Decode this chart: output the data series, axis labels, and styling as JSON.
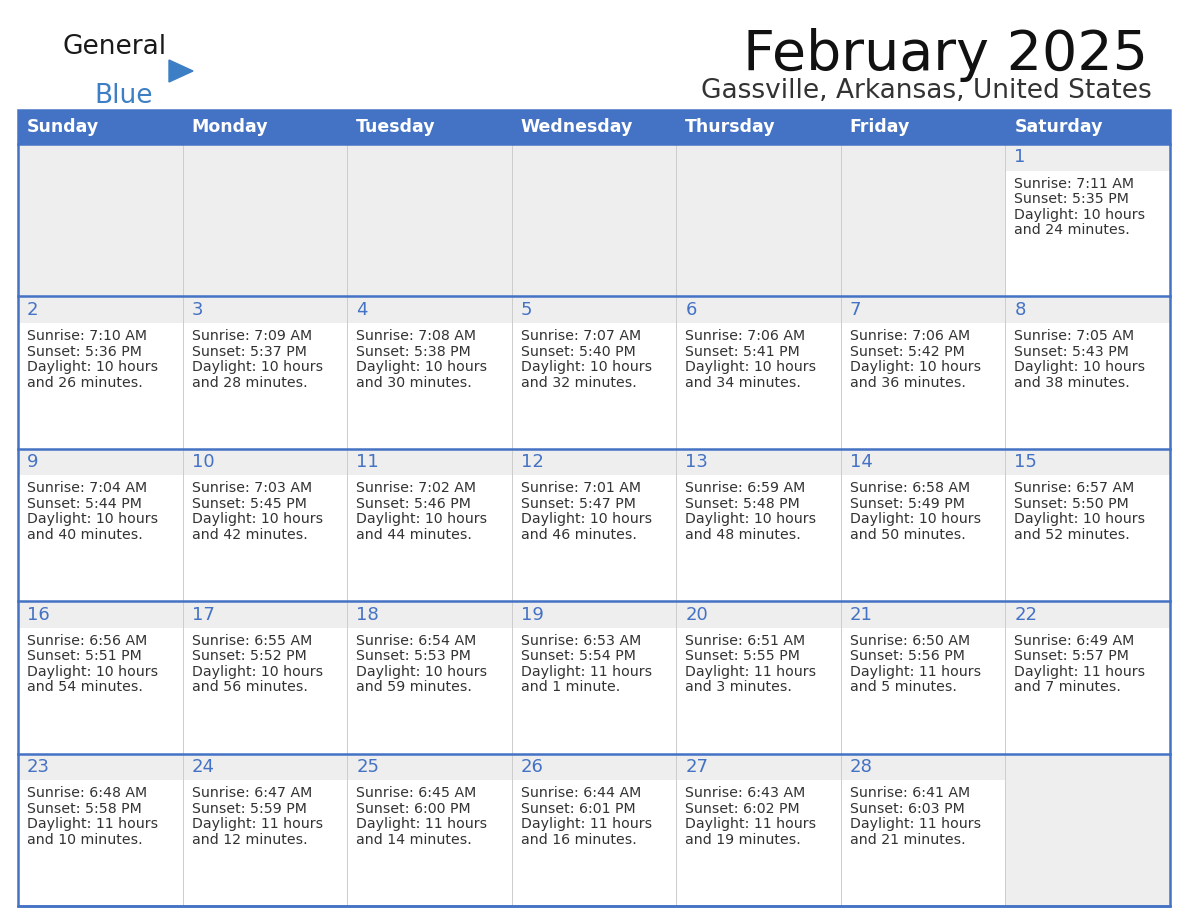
{
  "title": "February 2025",
  "subtitle": "Gassville, Arkansas, United States",
  "header_bg": "#4472c4",
  "header_text_color": "#ffffff",
  "cell_bg_light": "#eeeeee",
  "cell_bg_white": "#ffffff",
  "day_number_color": "#4472c4",
  "text_color": "#333333",
  "border_color": "#4472c4",
  "days_of_week": [
    "Sunday",
    "Monday",
    "Tuesday",
    "Wednesday",
    "Thursday",
    "Friday",
    "Saturday"
  ],
  "calendar_data": [
    [
      null,
      null,
      null,
      null,
      null,
      null,
      {
        "day": 1,
        "sunrise": "7:11 AM",
        "sunset": "5:35 PM",
        "daylight_line1": "10 hours",
        "daylight_line2": "and 24 minutes."
      }
    ],
    [
      {
        "day": 2,
        "sunrise": "7:10 AM",
        "sunset": "5:36 PM",
        "daylight_line1": "10 hours",
        "daylight_line2": "and 26 minutes."
      },
      {
        "day": 3,
        "sunrise": "7:09 AM",
        "sunset": "5:37 PM",
        "daylight_line1": "10 hours",
        "daylight_line2": "and 28 minutes."
      },
      {
        "day": 4,
        "sunrise": "7:08 AM",
        "sunset": "5:38 PM",
        "daylight_line1": "10 hours",
        "daylight_line2": "and 30 minutes."
      },
      {
        "day": 5,
        "sunrise": "7:07 AM",
        "sunset": "5:40 PM",
        "daylight_line1": "10 hours",
        "daylight_line2": "and 32 minutes."
      },
      {
        "day": 6,
        "sunrise": "7:06 AM",
        "sunset": "5:41 PM",
        "daylight_line1": "10 hours",
        "daylight_line2": "and 34 minutes."
      },
      {
        "day": 7,
        "sunrise": "7:06 AM",
        "sunset": "5:42 PM",
        "daylight_line1": "10 hours",
        "daylight_line2": "and 36 minutes."
      },
      {
        "day": 8,
        "sunrise": "7:05 AM",
        "sunset": "5:43 PM",
        "daylight_line1": "10 hours",
        "daylight_line2": "and 38 minutes."
      }
    ],
    [
      {
        "day": 9,
        "sunrise": "7:04 AM",
        "sunset": "5:44 PM",
        "daylight_line1": "10 hours",
        "daylight_line2": "and 40 minutes."
      },
      {
        "day": 10,
        "sunrise": "7:03 AM",
        "sunset": "5:45 PM",
        "daylight_line1": "10 hours",
        "daylight_line2": "and 42 minutes."
      },
      {
        "day": 11,
        "sunrise": "7:02 AM",
        "sunset": "5:46 PM",
        "daylight_line1": "10 hours",
        "daylight_line2": "and 44 minutes."
      },
      {
        "day": 12,
        "sunrise": "7:01 AM",
        "sunset": "5:47 PM",
        "daylight_line1": "10 hours",
        "daylight_line2": "and 46 minutes."
      },
      {
        "day": 13,
        "sunrise": "6:59 AM",
        "sunset": "5:48 PM",
        "daylight_line1": "10 hours",
        "daylight_line2": "and 48 minutes."
      },
      {
        "day": 14,
        "sunrise": "6:58 AM",
        "sunset": "5:49 PM",
        "daylight_line1": "10 hours",
        "daylight_line2": "and 50 minutes."
      },
      {
        "day": 15,
        "sunrise": "6:57 AM",
        "sunset": "5:50 PM",
        "daylight_line1": "10 hours",
        "daylight_line2": "and 52 minutes."
      }
    ],
    [
      {
        "day": 16,
        "sunrise": "6:56 AM",
        "sunset": "5:51 PM",
        "daylight_line1": "10 hours",
        "daylight_line2": "and 54 minutes."
      },
      {
        "day": 17,
        "sunrise": "6:55 AM",
        "sunset": "5:52 PM",
        "daylight_line1": "10 hours",
        "daylight_line2": "and 56 minutes."
      },
      {
        "day": 18,
        "sunrise": "6:54 AM",
        "sunset": "5:53 PM",
        "daylight_line1": "10 hours",
        "daylight_line2": "and 59 minutes."
      },
      {
        "day": 19,
        "sunrise": "6:53 AM",
        "sunset": "5:54 PM",
        "daylight_line1": "11 hours",
        "daylight_line2": "and 1 minute."
      },
      {
        "day": 20,
        "sunrise": "6:51 AM",
        "sunset": "5:55 PM",
        "daylight_line1": "11 hours",
        "daylight_line2": "and 3 minutes."
      },
      {
        "day": 21,
        "sunrise": "6:50 AM",
        "sunset": "5:56 PM",
        "daylight_line1": "11 hours",
        "daylight_line2": "and 5 minutes."
      },
      {
        "day": 22,
        "sunrise": "6:49 AM",
        "sunset": "5:57 PM",
        "daylight_line1": "11 hours",
        "daylight_line2": "and 7 minutes."
      }
    ],
    [
      {
        "day": 23,
        "sunrise": "6:48 AM",
        "sunset": "5:58 PM",
        "daylight_line1": "11 hours",
        "daylight_line2": "and 10 minutes."
      },
      {
        "day": 24,
        "sunrise": "6:47 AM",
        "sunset": "5:59 PM",
        "daylight_line1": "11 hours",
        "daylight_line2": "and 12 minutes."
      },
      {
        "day": 25,
        "sunrise": "6:45 AM",
        "sunset": "6:00 PM",
        "daylight_line1": "11 hours",
        "daylight_line2": "and 14 minutes."
      },
      {
        "day": 26,
        "sunrise": "6:44 AM",
        "sunset": "6:01 PM",
        "daylight_line1": "11 hours",
        "daylight_line2": "and 16 minutes."
      },
      {
        "day": 27,
        "sunrise": "6:43 AM",
        "sunset": "6:02 PM",
        "daylight_line1": "11 hours",
        "daylight_line2": "and 19 minutes."
      },
      {
        "day": 28,
        "sunrise": "6:41 AM",
        "sunset": "6:03 PM",
        "daylight_line1": "11 hours",
        "daylight_line2": "and 21 minutes."
      },
      null
    ]
  ]
}
